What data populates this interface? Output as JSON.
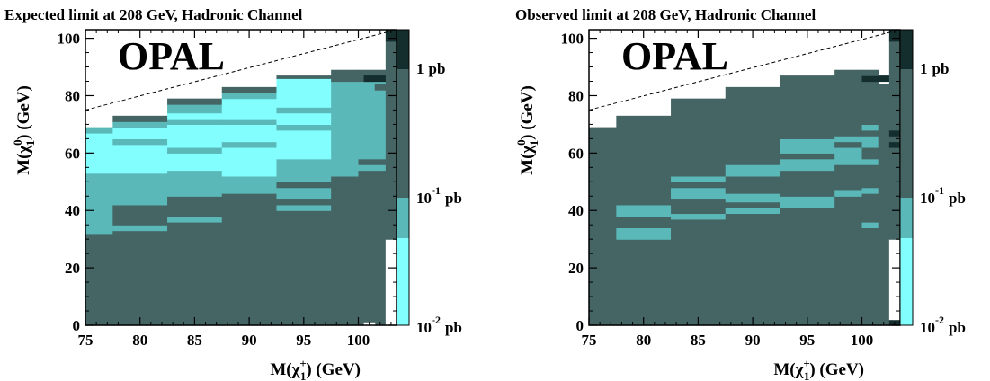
{
  "figure": {
    "colors": {
      "cyan": "#83fefe",
      "teal": "#5bb8b8",
      "dark": "#456464",
      "black": "#142d2d",
      "white": "#ffffff"
    },
    "colorbar_labels": [
      {
        "base": "1",
        "exp": "",
        "unit": "pb"
      },
      {
        "base": "10",
        "exp": "-1",
        "unit": "pb"
      },
      {
        "base": "10",
        "exp": "-2",
        "unit": "pb"
      }
    ]
  },
  "chart_data": [
    {
      "type": "heatmap",
      "title": "Expected limit at 208 GeV, Hadronic Channel",
      "watermark": "OPAL",
      "xlabel": {
        "main": "M(χ",
        "sub": "1",
        "sup": "+",
        "end": ") (GeV)"
      },
      "ylabel": {
        "main": "M(χ",
        "sub": "1",
        "sup": "0",
        "end": ") (GeV)"
      },
      "xlim": [
        75,
        103.5
      ],
      "ylim": [
        0,
        103
      ],
      "xticks": [
        75,
        80,
        85,
        90,
        95,
        100
      ],
      "yticks": [
        0,
        20,
        40,
        60,
        80,
        100
      ],
      "kinematic_limit_line": [
        [
          75,
          75
        ],
        [
          103.5,
          103
        ]
      ],
      "columns": [
        {
          "x0": 75,
          "x1": 77.5,
          "top": 69,
          "segs": [
            [
              0,
              32,
              "dark"
            ],
            [
              32,
              53,
              "teal"
            ],
            [
              53,
              67,
              "cyan"
            ],
            [
              67,
              69,
              "teal"
            ]
          ]
        },
        {
          "x0": 77.5,
          "x1": 82.5,
          "top": 73,
          "segs": [
            [
              0,
              33,
              "dark"
            ],
            [
              33,
              35,
              "teal"
            ],
            [
              35,
              42,
              "dark"
            ],
            [
              42,
              53,
              "teal"
            ],
            [
              53,
              63,
              "cyan"
            ],
            [
              63,
              65,
              "teal"
            ],
            [
              65,
              69,
              "cyan"
            ],
            [
              69,
              71,
              "teal"
            ],
            [
              71,
              73,
              "dark"
            ]
          ]
        },
        {
          "x0": 82.5,
          "x1": 87.5,
          "top": 79,
          "segs": [
            [
              0,
              36,
              "dark"
            ],
            [
              36,
              38,
              "teal"
            ],
            [
              38,
              45,
              "dark"
            ],
            [
              45,
              47,
              "teal"
            ],
            [
              47,
              54,
              "teal"
            ],
            [
              54,
              60,
              "cyan"
            ],
            [
              60,
              62,
              "teal"
            ],
            [
              62,
              70,
              "cyan"
            ],
            [
              70,
              72,
              "teal"
            ],
            [
              72,
              74,
              "cyan"
            ],
            [
              74,
              77,
              "teal"
            ],
            [
              77,
              79,
              "dark"
            ]
          ]
        },
        {
          "x0": 87.5,
          "x1": 92.5,
          "top": 83,
          "segs": [
            [
              0,
              46,
              "dark"
            ],
            [
              46,
              52,
              "teal"
            ],
            [
              52,
              62,
              "cyan"
            ],
            [
              62,
              64,
              "teal"
            ],
            [
              64,
              70,
              "cyan"
            ],
            [
              70,
              72,
              "teal"
            ],
            [
              72,
              79,
              "cyan"
            ],
            [
              79,
              81,
              "teal"
            ],
            [
              81,
              83,
              "dark"
            ]
          ]
        },
        {
          "x0": 92.5,
          "x1": 97.5,
          "top": 87,
          "segs": [
            [
              0,
              40,
              "dark"
            ],
            [
              40,
              42,
              "teal"
            ],
            [
              42,
              44,
              "dark"
            ],
            [
              44,
              48,
              "teal"
            ],
            [
              48,
              50,
              "dark"
            ],
            [
              50,
              52,
              "teal"
            ],
            [
              52,
              58,
              "teal"
            ],
            [
              58,
              68,
              "cyan"
            ],
            [
              68,
              70,
              "teal"
            ],
            [
              70,
              74,
              "cyan"
            ],
            [
              74,
              76,
              "teal"
            ],
            [
              76,
              86,
              "cyan"
            ],
            [
              86,
              87,
              "dark"
            ]
          ]
        },
        {
          "x0": 97.5,
          "x1": 100,
          "top": 89,
          "segs": [
            [
              0,
              52,
              "dark"
            ],
            [
              52,
              85,
              "teal"
            ],
            [
              85,
              89,
              "dark"
            ]
          ]
        },
        {
          "x0": 100,
          "x1": 102.5,
          "top": 89,
          "segs": [
            [
              0,
              54,
              "dark"
            ],
            [
              54,
              56,
              "teal"
            ],
            [
              56,
              58,
              "dark"
            ],
            [
              58,
              85,
              "teal"
            ],
            [
              85,
              89,
              "dark"
            ]
          ]
        },
        {
          "x0": 100.5,
          "x1": 101.5,
          "top": 87,
          "segs": [
            [
              0,
              1,
              "white"
            ],
            [
              85,
              87,
              "black"
            ]
          ]
        },
        {
          "x0": 101.5,
          "x1": 102.5,
          "top": 84,
          "segs": [
            [
              82,
              84,
              "dark"
            ],
            [
              85,
              87,
              "black"
            ]
          ]
        },
        {
          "x0": 102.5,
          "x1": 103.5,
          "top": 103,
          "segs": [
            [
              0,
              30,
              "white"
            ],
            [
              30,
              62,
              "dark"
            ],
            [
              62,
              82,
              "dark"
            ],
            [
              82,
              99,
              "dark"
            ],
            [
              99,
              103,
              "black"
            ]
          ]
        }
      ]
    },
    {
      "type": "heatmap",
      "title": "Observed limit at 208 GeV, Hadronic Channel",
      "watermark": "OPAL",
      "xlabel": {
        "main": "M(χ",
        "sub": "1",
        "sup": "+",
        "end": ") (GeV)"
      },
      "ylabel": {
        "main": "M(χ",
        "sub": "1",
        "sup": "0",
        "end": ") (GeV)"
      },
      "xlim": [
        75,
        103.5
      ],
      "ylim": [
        0,
        103
      ],
      "xticks": [
        75,
        80,
        85,
        90,
        95,
        100
      ],
      "yticks": [
        0,
        20,
        40,
        60,
        80,
        100
      ],
      "kinematic_limit_line": [
        [
          75,
          75
        ],
        [
          103.5,
          103
        ]
      ],
      "columns": [
        {
          "x0": 75,
          "x1": 77.5,
          "top": 69,
          "segs": [
            [
              0,
              69,
              "dark"
            ]
          ]
        },
        {
          "x0": 77.5,
          "x1": 82.5,
          "top": 73,
          "segs": [
            [
              0,
              30,
              "dark"
            ],
            [
              30,
              34,
              "teal"
            ],
            [
              34,
              38,
              "dark"
            ],
            [
              38,
              42,
              "teal"
            ],
            [
              42,
              73,
              "dark"
            ]
          ]
        },
        {
          "x0": 82.5,
          "x1": 87.5,
          "top": 79,
          "segs": [
            [
              0,
              37,
              "dark"
            ],
            [
              37,
              39,
              "teal"
            ],
            [
              39,
              44,
              "dark"
            ],
            [
              44,
              48,
              "teal"
            ],
            [
              48,
              50,
              "dark"
            ],
            [
              50,
              52,
              "teal"
            ],
            [
              52,
              79,
              "dark"
            ]
          ]
        },
        {
          "x0": 87.5,
          "x1": 92.5,
          "top": 83,
          "segs": [
            [
              0,
              39,
              "dark"
            ],
            [
              39,
              41,
              "teal"
            ],
            [
              41,
              43,
              "dark"
            ],
            [
              43,
              46,
              "teal"
            ],
            [
              46,
              52,
              "dark"
            ],
            [
              52,
              56,
              "teal"
            ],
            [
              56,
              83,
              "dark"
            ]
          ]
        },
        {
          "x0": 92.5,
          "x1": 97.5,
          "top": 87,
          "segs": [
            [
              0,
              41,
              "dark"
            ],
            [
              41,
              45,
              "teal"
            ],
            [
              45,
              54,
              "dark"
            ],
            [
              54,
              58,
              "teal"
            ],
            [
              58,
              60,
              "dark"
            ],
            [
              60,
              65,
              "teal"
            ],
            [
              65,
              87,
              "dark"
            ]
          ]
        },
        {
          "x0": 97.5,
          "x1": 100,
          "top": 89,
          "segs": [
            [
              0,
              45,
              "dark"
            ],
            [
              45,
              47,
              "teal"
            ],
            [
              47,
              56,
              "dark"
            ],
            [
              56,
              62,
              "teal"
            ],
            [
              62,
              64,
              "dark"
            ],
            [
              64,
              66,
              "teal"
            ],
            [
              66,
              89,
              "dark"
            ]
          ]
        },
        {
          "x0": 100,
          "x1": 101.5,
          "top": 89,
          "segs": [
            [
              0,
              34,
              "dark"
            ],
            [
              34,
              36,
              "teal"
            ],
            [
              36,
              46,
              "dark"
            ],
            [
              46,
              48,
              "teal"
            ],
            [
              48,
              56,
              "dark"
            ],
            [
              56,
              58,
              "teal"
            ],
            [
              58,
              62,
              "dark"
            ],
            [
              62,
              66,
              "teal"
            ],
            [
              66,
              68,
              "dark"
            ],
            [
              68,
              70,
              "teal"
            ],
            [
              70,
              85,
              "dark"
            ],
            [
              85,
              87,
              "black"
            ],
            [
              87,
              89,
              "dark"
            ]
          ]
        },
        {
          "x0": 101.5,
          "x1": 102.5,
          "top": 84,
          "segs": [
            [
              0,
              84,
              "dark"
            ],
            [
              85,
              87,
              "black"
            ]
          ]
        },
        {
          "x0": 102.5,
          "x1": 103.5,
          "top": 103,
          "segs": [
            [
              0,
              2,
              "black"
            ],
            [
              2,
              30,
              "white"
            ],
            [
              30,
              62,
              "dark"
            ],
            [
              62,
              64,
              "black"
            ],
            [
              64,
              66,
              "dark"
            ],
            [
              66,
              68,
              "black"
            ],
            [
              68,
              99,
              "dark"
            ],
            [
              99,
              103,
              "black"
            ]
          ]
        }
      ]
    }
  ]
}
